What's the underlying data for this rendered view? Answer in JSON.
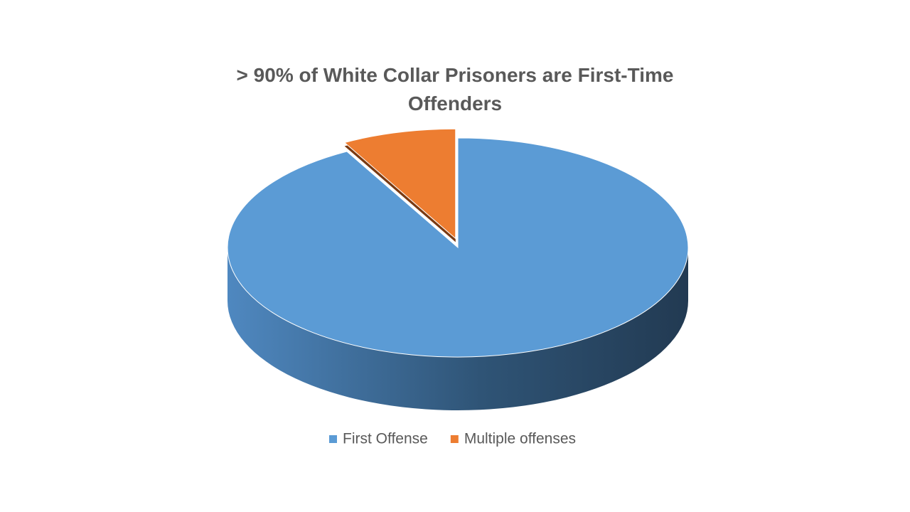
{
  "chart_data": {
    "type": "pie",
    "title": "> 90% of White Collar Prisoners are First-Time Offenders",
    "categories": [
      "First Offense",
      "Multiple offenses"
    ],
    "values": [
      92,
      8
    ],
    "colors": [
      "#5b9bd5",
      "#ed7d31"
    ],
    "legend": "bottom"
  }
}
